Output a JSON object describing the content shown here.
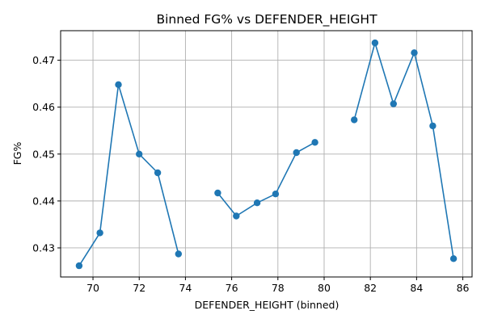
{
  "chart_data": {
    "type": "line",
    "title": "Binned FG% vs DEFENDER_HEIGHT",
    "xlabel": "DEFENDER_HEIGHT (binned)",
    "ylabel": "FG%",
    "xlim": [
      68.6,
      86.4
    ],
    "ylim": [
      0.4238,
      0.4763
    ],
    "xticks": [
      70,
      72,
      74,
      76,
      78,
      80,
      82,
      84,
      86
    ],
    "yticks": [
      0.43,
      0.44,
      0.45,
      0.46,
      0.47
    ],
    "ytick_labels": [
      "0.43",
      "0.44",
      "0.45",
      "0.46",
      "0.47"
    ],
    "grid": true,
    "color": "#1f77b4",
    "marker": "circle",
    "series": [
      {
        "segments": [
          [
            [
              69.4,
              0.4262
            ],
            [
              70.3,
              0.4332
            ],
            [
              71.1,
              0.4648
            ],
            [
              72.0,
              0.45
            ],
            [
              72.8,
              0.446
            ],
            [
              73.7,
              0.4287
            ]
          ],
          [
            [
              75.4,
              0.4417
            ],
            [
              76.2,
              0.4368
            ],
            [
              77.1,
              0.4396
            ],
            [
              77.9,
              0.4415
            ],
            [
              78.8,
              0.4503
            ],
            [
              79.6,
              0.4525
            ]
          ],
          [
            [
              81.3,
              0.4573
            ],
            [
              82.2,
              0.4737
            ],
            [
              83.0,
              0.4607
            ],
            [
              83.9,
              0.4716
            ],
            [
              84.7,
              0.456
            ],
            [
              85.6,
              0.4277
            ]
          ]
        ]
      }
    ]
  }
}
